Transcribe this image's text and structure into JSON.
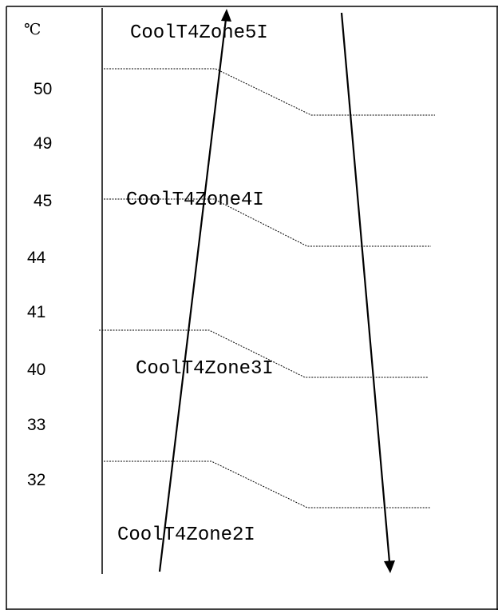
{
  "unit_label": "℃",
  "temperatures": [
    "50",
    "49",
    "45",
    "44",
    "41",
    "40",
    "33",
    "32"
  ],
  "zones": [
    "CoolT4Zone5I",
    "CoolT4Zone4I",
    "CoolT4Zone3I",
    "CoolT4Zone2I"
  ]
}
